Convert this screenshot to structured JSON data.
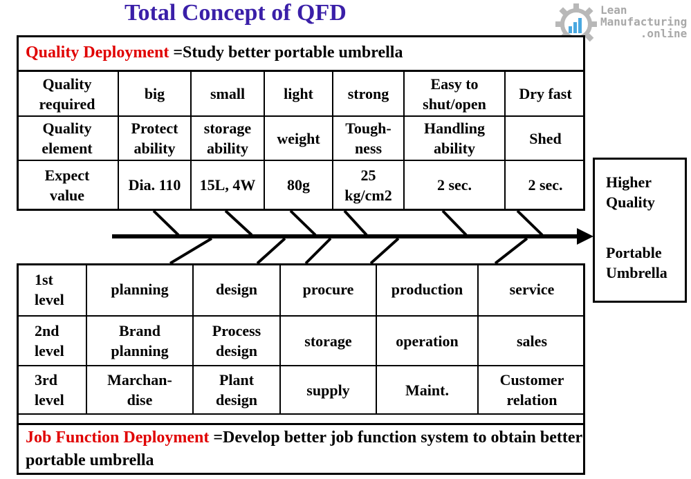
{
  "title": "Total Concept of QFD",
  "logo": {
    "line1": "Lean",
    "line2": "Manufacturing",
    "line3": ".online"
  },
  "quality_deployment": {
    "label": "Quality Deployment",
    "text": "=Study better portable umbrella",
    "label_color": "#e00000",
    "rows": [
      {
        "header": [
          "Quality",
          "required"
        ],
        "cells": [
          [
            "big"
          ],
          [
            "small"
          ],
          [
            "light"
          ],
          [
            "strong"
          ],
          [
            "Easy to",
            "shut/open"
          ],
          [
            "Dry fast"
          ]
        ]
      },
      {
        "header": [
          "Quality",
          "element"
        ],
        "cells": [
          [
            "Protect",
            "ability"
          ],
          [
            "storage",
            "ability"
          ],
          [
            "weight"
          ],
          [
            "Tough-",
            "ness"
          ],
          [
            "Handling",
            "ability"
          ],
          [
            "Shed"
          ]
        ]
      },
      {
        "header": [
          "Expect",
          "value"
        ],
        "cells": [
          [
            "Dia. 110"
          ],
          [
            "15L, 4W"
          ],
          [
            "80g"
          ],
          [
            "25",
            "kg/cm2"
          ],
          [
            "2 sec."
          ],
          [
            "2 sec."
          ]
        ]
      }
    ]
  },
  "job_function_deployment": {
    "label": "Job Function Deployment",
    "text": "=Develop better job function system to obtain better portable umbrella",
    "label_color": "#e00000",
    "rows": [
      {
        "header": [
          "1st",
          "level"
        ],
        "cells": [
          [
            "planning"
          ],
          [
            "design"
          ],
          [
            "procure"
          ],
          [
            "production"
          ],
          [
            "service"
          ]
        ]
      },
      {
        "header": [
          "2nd",
          "level"
        ],
        "cells": [
          [
            "Brand",
            "planning"
          ],
          [
            "Process",
            "design"
          ],
          [
            "storage"
          ],
          [
            "operation"
          ],
          [
            "sales"
          ]
        ]
      },
      {
        "header": [
          "3rd",
          "level"
        ],
        "cells": [
          [
            "Marchan-",
            "dise"
          ],
          [
            "Plant",
            "design"
          ],
          [
            "supply"
          ],
          [
            "Maint."
          ],
          [
            "Customer",
            "relation"
          ]
        ]
      }
    ]
  },
  "result": {
    "line1": "Higher",
    "line2": "Quality",
    "line3": "Portable",
    "line4": "Umbrella"
  },
  "colors": {
    "title": "#3a1fa8",
    "accent_red": "#e00000",
    "logo_gray": "#a8a8a8",
    "logo_blue": "#4aa8e0"
  }
}
